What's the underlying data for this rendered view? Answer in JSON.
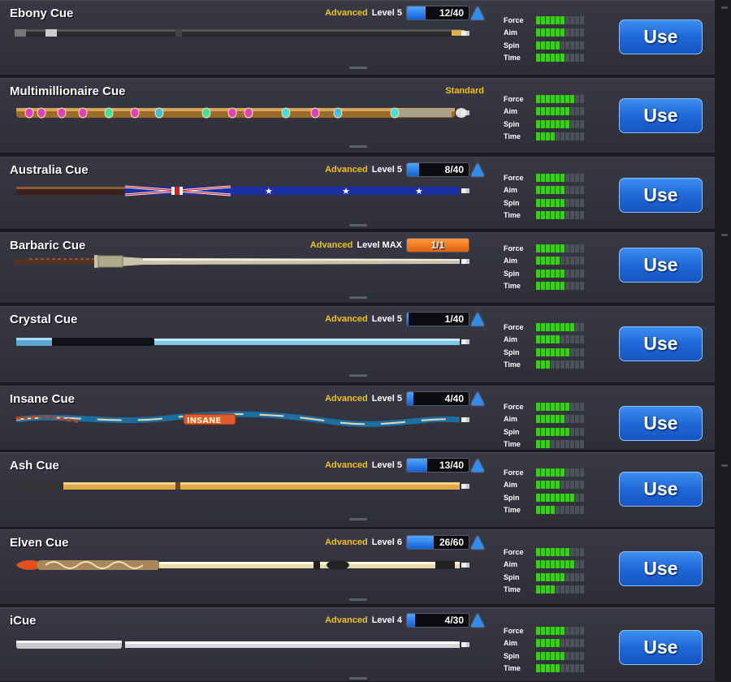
{
  "cues": [
    {
      "name": "Ebony Cue",
      "tier": "Advanced",
      "level_text": "Level 5",
      "progress": "12/40",
      "progress_fraction": 0.3,
      "max": false,
      "upgradable": true,
      "stats": {
        "force": 6,
        "aim": 6,
        "spin": 5,
        "time": 6
      },
      "use_label": "Use",
      "style": "ebony"
    },
    {
      "name": "Multimillionaire Cue",
      "tier": "Standard",
      "level_text": "",
      "progress": "",
      "progress_fraction": 0,
      "max": false,
      "upgradable": false,
      "stats": {
        "force": 8,
        "aim": 7,
        "spin": 7,
        "time": 4
      },
      "use_label": "Use",
      "style": "multimillionaire"
    },
    {
      "name": "Australia Cue",
      "tier": "Advanced",
      "level_text": "Level 5",
      "progress": "8/40",
      "progress_fraction": 0.2,
      "max": false,
      "upgradable": true,
      "stats": {
        "force": 6,
        "aim": 6,
        "spin": 6,
        "time": 6
      },
      "use_label": "Use",
      "style": "australia"
    },
    {
      "name": "Barbaric Cue",
      "tier": "Advanced",
      "level_text": "Level MAX",
      "progress": "1/1",
      "progress_fraction": 1,
      "max": true,
      "upgradable": false,
      "stats": {
        "force": 6,
        "aim": 5,
        "spin": 6,
        "time": 6
      },
      "use_label": "Use",
      "style": "barbaric"
    },
    {
      "name": "Crystal Cue",
      "tier": "Advanced",
      "level_text": "Level 5",
      "progress": "1/40",
      "progress_fraction": 0.03,
      "max": false,
      "upgradable": true,
      "stats": {
        "force": 8,
        "aim": 5,
        "spin": 7,
        "time": 3
      },
      "use_label": "Use",
      "style": "crystal"
    },
    {
      "name": "Insane Cue",
      "tier": "Advanced",
      "level_text": "Level 5",
      "progress": "4/40",
      "progress_fraction": 0.1,
      "max": false,
      "upgradable": true,
      "stats": {
        "force": 7,
        "aim": 6,
        "spin": 7,
        "time": 3
      },
      "use_label": "Use",
      "style": "insane"
    },
    {
      "name": "Ash Cue",
      "tier": "Advanced",
      "level_text": "Level 5",
      "progress": "13/40",
      "progress_fraction": 0.33,
      "max": false,
      "upgradable": true,
      "stats": {
        "force": 6,
        "aim": 5,
        "spin": 8,
        "time": 4
      },
      "use_label": "Use",
      "style": "ash"
    },
    {
      "name": "Elven Cue",
      "tier": "Advanced",
      "level_text": "Level 6",
      "progress": "26/60",
      "progress_fraction": 0.43,
      "max": false,
      "upgradable": true,
      "stats": {
        "force": 7,
        "aim": 8,
        "spin": 6,
        "time": 4
      },
      "use_label": "Use",
      "style": "elven"
    },
    {
      "name": "iCue",
      "tier": "Advanced",
      "level_text": "Level 4",
      "progress": "4/30",
      "progress_fraction": 0.13,
      "max": false,
      "upgradable": true,
      "stats": {
        "force": 6,
        "aim": 5,
        "spin": 6,
        "time": 5
      },
      "use_label": "Use",
      "style": "icue"
    }
  ],
  "stat_labels": {
    "force": "Force",
    "aim": "Aim",
    "spin": "Spin",
    "time": "Time"
  },
  "stat_max_segments": 10,
  "colors": {
    "tier_label": "#f2c21a",
    "stat_on": "#3dcc19",
    "stat_off": "#4f515a",
    "use_button": "#2a7ae6",
    "progress_blue": "#2f86f0",
    "progress_max": "#f07a1e"
  }
}
